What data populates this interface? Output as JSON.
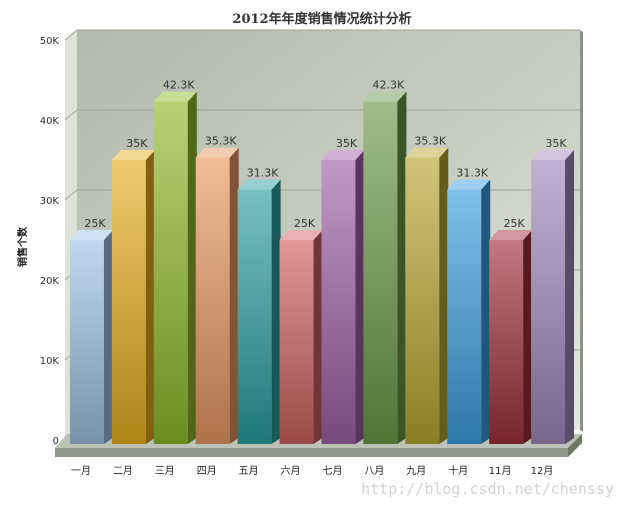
{
  "chart_data": {
    "type": "bar",
    "title": "2012年年度销售情况统计分析",
    "ylabel": "销售个数",
    "xlabel": "",
    "categories": [
      "一月",
      "二月",
      "三月",
      "四月",
      "五月",
      "六月",
      "七月",
      "八月",
      "九月",
      "十月",
      "11月",
      "12月"
    ],
    "values": [
      25000,
      35000,
      42300,
      35300,
      31300,
      25000,
      35000,
      42300,
      35300,
      31300,
      25000,
      35000
    ],
    "value_labels": [
      "25K",
      "35K",
      "42.3K",
      "35.3K",
      "31.3K",
      "25K",
      "35K",
      "42.3K",
      "35.3K",
      "31.3K",
      "25K",
      "35K"
    ],
    "ylim": [
      0,
      50000
    ],
    "yticks": [
      0,
      10000,
      20000,
      30000,
      40000,
      50000
    ],
    "ytick_labels": [
      "0",
      "10K",
      "20K",
      "30K",
      "40K",
      "50K"
    ],
    "grid": true,
    "legend": "none",
    "style": "3d-column",
    "colors": [
      "#9fc2e6",
      "#e8b020",
      "#8fbc2a",
      "#e89860",
      "#2aa0a0",
      "#d06060",
      "#a060a8",
      "#6a9a48",
      "#b8a830",
      "#3aa0e0",
      "#a03038",
      "#a088bc"
    ]
  },
  "watermark": "http://blog.csdn.net/chenssy"
}
